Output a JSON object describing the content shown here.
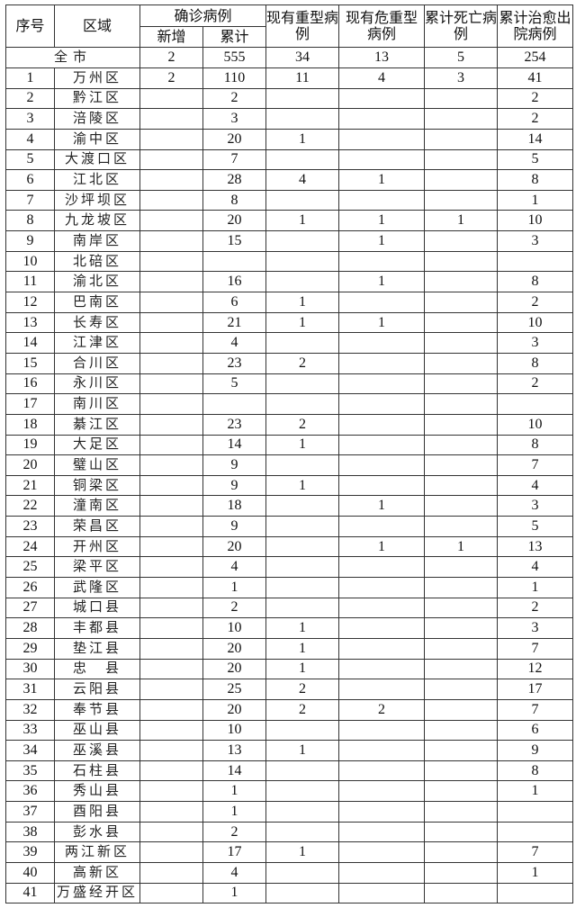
{
  "headers": {
    "index": "序号",
    "region": "区域",
    "confirmed": "确诊病例",
    "confirmed_new": "新增",
    "confirmed_total": "累计",
    "severe": "现有重型病例",
    "critical": "现有危重型病例",
    "deaths": "累计死亡病例",
    "recovered": "累计治愈出院病例"
  },
  "total": {
    "region": "全市",
    "new": "2",
    "cumulative": "555",
    "severe": "34",
    "critical": "13",
    "deaths": "5",
    "recovered": "254"
  },
  "rows": [
    {
      "index": "1",
      "region": "万州区",
      "new": "2",
      "cumulative": "110",
      "severe": "11",
      "critical": "4",
      "deaths": "3",
      "recovered": "41"
    },
    {
      "index": "2",
      "region": "黔江区",
      "new": "",
      "cumulative": "2",
      "severe": "",
      "critical": "",
      "deaths": "",
      "recovered": "2"
    },
    {
      "index": "3",
      "region": "涪陵区",
      "new": "",
      "cumulative": "3",
      "severe": "",
      "critical": "",
      "deaths": "",
      "recovered": "2"
    },
    {
      "index": "4",
      "region": "渝中区",
      "new": "",
      "cumulative": "20",
      "severe": "1",
      "critical": "",
      "deaths": "",
      "recovered": "14"
    },
    {
      "index": "5",
      "region": "大渡口区",
      "new": "",
      "cumulative": "7",
      "severe": "",
      "critical": "",
      "deaths": "",
      "recovered": "5"
    },
    {
      "index": "6",
      "region": "江北区",
      "new": "",
      "cumulative": "28",
      "severe": "4",
      "critical": "1",
      "deaths": "",
      "recovered": "8"
    },
    {
      "index": "7",
      "region": "沙坪坝区",
      "new": "",
      "cumulative": "8",
      "severe": "",
      "critical": "",
      "deaths": "",
      "recovered": "1"
    },
    {
      "index": "8",
      "region": "九龙坡区",
      "new": "",
      "cumulative": "20",
      "severe": "1",
      "critical": "1",
      "deaths": "1",
      "recovered": "10"
    },
    {
      "index": "9",
      "region": "南岸区",
      "new": "",
      "cumulative": "15",
      "severe": "",
      "critical": "1",
      "deaths": "",
      "recovered": "3"
    },
    {
      "index": "10",
      "region": "北碚区",
      "new": "",
      "cumulative": "",
      "severe": "",
      "critical": "",
      "deaths": "",
      "recovered": ""
    },
    {
      "index": "11",
      "region": "渝北区",
      "new": "",
      "cumulative": "16",
      "severe": "",
      "critical": "1",
      "deaths": "",
      "recovered": "8"
    },
    {
      "index": "12",
      "region": "巴南区",
      "new": "",
      "cumulative": "6",
      "severe": "1",
      "critical": "",
      "deaths": "",
      "recovered": "2"
    },
    {
      "index": "13",
      "region": "长寿区",
      "new": "",
      "cumulative": "21",
      "severe": "1",
      "critical": "1",
      "deaths": "",
      "recovered": "10"
    },
    {
      "index": "14",
      "region": "江津区",
      "new": "",
      "cumulative": "4",
      "severe": "",
      "critical": "",
      "deaths": "",
      "recovered": "3"
    },
    {
      "index": "15",
      "region": "合川区",
      "new": "",
      "cumulative": "23",
      "severe": "2",
      "critical": "",
      "deaths": "",
      "recovered": "8"
    },
    {
      "index": "16",
      "region": "永川区",
      "new": "",
      "cumulative": "5",
      "severe": "",
      "critical": "",
      "deaths": "",
      "recovered": "2"
    },
    {
      "index": "17",
      "region": "南川区",
      "new": "",
      "cumulative": "",
      "severe": "",
      "critical": "",
      "deaths": "",
      "recovered": ""
    },
    {
      "index": "18",
      "region": "綦江区",
      "new": "",
      "cumulative": "23",
      "severe": "2",
      "critical": "",
      "deaths": "",
      "recovered": "10"
    },
    {
      "index": "19",
      "region": "大足区",
      "new": "",
      "cumulative": "14",
      "severe": "1",
      "critical": "",
      "deaths": "",
      "recovered": "8"
    },
    {
      "index": "20",
      "region": "璧山区",
      "new": "",
      "cumulative": "9",
      "severe": "",
      "critical": "",
      "deaths": "",
      "recovered": "7"
    },
    {
      "index": "21",
      "region": "铜梁区",
      "new": "",
      "cumulative": "9",
      "severe": "1",
      "critical": "",
      "deaths": "",
      "recovered": "4"
    },
    {
      "index": "22",
      "region": "潼南区",
      "new": "",
      "cumulative": "18",
      "severe": "",
      "critical": "1",
      "deaths": "",
      "recovered": "3"
    },
    {
      "index": "23",
      "region": "荣昌区",
      "new": "",
      "cumulative": "9",
      "severe": "",
      "critical": "",
      "deaths": "",
      "recovered": "5"
    },
    {
      "index": "24",
      "region": "开州区",
      "new": "",
      "cumulative": "20",
      "severe": "",
      "critical": "1",
      "deaths": "1",
      "recovered": "13"
    },
    {
      "index": "25",
      "region": "梁平区",
      "new": "",
      "cumulative": "4",
      "severe": "",
      "critical": "",
      "deaths": "",
      "recovered": "4"
    },
    {
      "index": "26",
      "region": "武隆区",
      "new": "",
      "cumulative": "1",
      "severe": "",
      "critical": "",
      "deaths": "",
      "recovered": "1"
    },
    {
      "index": "27",
      "region": "城口县",
      "new": "",
      "cumulative": "2",
      "severe": "",
      "critical": "",
      "deaths": "",
      "recovered": "2"
    },
    {
      "index": "28",
      "region": "丰都县",
      "new": "",
      "cumulative": "10",
      "severe": "1",
      "critical": "",
      "deaths": "",
      "recovered": "3"
    },
    {
      "index": "29",
      "region": "垫江县",
      "new": "",
      "cumulative": "20",
      "severe": "1",
      "critical": "",
      "deaths": "",
      "recovered": "7"
    },
    {
      "index": "30",
      "region": "忠　县",
      "new": "",
      "cumulative": "20",
      "severe": "1",
      "critical": "",
      "deaths": "",
      "recovered": "12"
    },
    {
      "index": "31",
      "region": "云阳县",
      "new": "",
      "cumulative": "25",
      "severe": "2",
      "critical": "",
      "deaths": "",
      "recovered": "17"
    },
    {
      "index": "32",
      "region": "奉节县",
      "new": "",
      "cumulative": "20",
      "severe": "2",
      "critical": "2",
      "deaths": "",
      "recovered": "7"
    },
    {
      "index": "33",
      "region": "巫山县",
      "new": "",
      "cumulative": "10",
      "severe": "",
      "critical": "",
      "deaths": "",
      "recovered": "6"
    },
    {
      "index": "34",
      "region": "巫溪县",
      "new": "",
      "cumulative": "13",
      "severe": "1",
      "critical": "",
      "deaths": "",
      "recovered": "9"
    },
    {
      "index": "35",
      "region": "石柱县",
      "new": "",
      "cumulative": "14",
      "severe": "",
      "critical": "",
      "deaths": "",
      "recovered": "8"
    },
    {
      "index": "36",
      "region": "秀山县",
      "new": "",
      "cumulative": "1",
      "severe": "",
      "critical": "",
      "deaths": "",
      "recovered": "1"
    },
    {
      "index": "37",
      "region": "酉阳县",
      "new": "",
      "cumulative": "1",
      "severe": "",
      "critical": "",
      "deaths": "",
      "recovered": ""
    },
    {
      "index": "38",
      "region": "彭水县",
      "new": "",
      "cumulative": "2",
      "severe": "",
      "critical": "",
      "deaths": "",
      "recovered": ""
    },
    {
      "index": "39",
      "region": "两江新区",
      "new": "",
      "cumulative": "17",
      "severe": "1",
      "critical": "",
      "deaths": "",
      "recovered": "7"
    },
    {
      "index": "40",
      "region": "高新区",
      "new": "",
      "cumulative": "4",
      "severe": "",
      "critical": "",
      "deaths": "",
      "recovered": "1"
    },
    {
      "index": "41",
      "region": "万盛经开区",
      "new": "",
      "cumulative": "1",
      "severe": "",
      "critical": "",
      "deaths": "",
      "recovered": ""
    }
  ]
}
